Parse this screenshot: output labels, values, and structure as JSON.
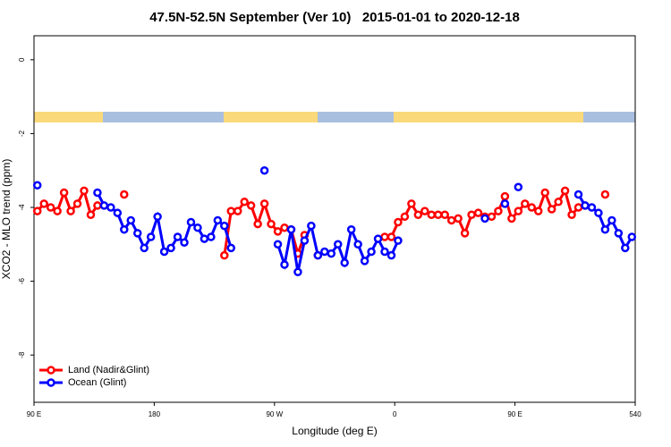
{
  "chart_data": {
    "type": "line",
    "title": "47.5N-52.5N September (Ver 10)   2015-01-01 to 2020-12-18",
    "xlabel": "Longitude (deg E)",
    "ylabel": "XCO2 - MLO trend (ppm)",
    "xlim": [
      90,
      540
    ],
    "ylim": [
      -9.28,
      0.65
    ],
    "xticks": [
      {
        "value": 90,
        "label": "90 E"
      },
      180,
      {
        "value": 270,
        "label": "90 W"
      },
      {
        "value": 360,
        "label": "0"
      },
      {
        "value": 450,
        "label": "90 E"
      },
      540
    ],
    "yticks": [
      -8,
      -6,
      -4,
      -2,
      0
    ],
    "legend": "bottom-left",
    "x": [
      92.5,
      97.5,
      102.5,
      107.5,
      112.5,
      117.5,
      122.5,
      127.5,
      132.5,
      137.5,
      142.5,
      147.5,
      152.5,
      157.5,
      162.5,
      167.5,
      172.5,
      177.5,
      182.5,
      187.5,
      192.5,
      197.5,
      202.5,
      207.5,
      212.5,
      217.5,
      222.5,
      227.5,
      232.5,
      237.5,
      242.5,
      247.5,
      252.5,
      257.5,
      262.5,
      267.5,
      272.5,
      277.5,
      282.5,
      287.5,
      292.5,
      297.5,
      302.5,
      307.5,
      312.5,
      317.5,
      322.5,
      327.5,
      332.5,
      337.5,
      342.5,
      347.5,
      352.5,
      357.5,
      362.5,
      367.5,
      372.5,
      377.5,
      382.5,
      387.5,
      392.5,
      397.5,
      402.5,
      407.5,
      412.5,
      417.5,
      422.5,
      427.5,
      432.5,
      437.5,
      442.5,
      447.5,
      452.5,
      457.5,
      462.5,
      467.5,
      472.5,
      477.5,
      482.5,
      487.5,
      492.5,
      497.5,
      502.5,
      507.5,
      512.5,
      517.5,
      522.5,
      527.5,
      532.5,
      537.5
    ],
    "series": [
      {
        "name": "Land (Nadir&Glint)",
        "color": "#ff0000",
        "values": [
          -4.1,
          -3.9,
          -4.0,
          -4.1,
          -3.6,
          -4.1,
          -3.9,
          -3.55,
          -4.2,
          -3.95,
          null,
          null,
          null,
          -3.65,
          null,
          null,
          null,
          null,
          null,
          null,
          null,
          null,
          null,
          null,
          null,
          null,
          null,
          null,
          -5.3,
          -4.1,
          -4.1,
          -3.85,
          -3.95,
          -4.45,
          -3.9,
          -4.45,
          -4.65,
          -4.55,
          -4.6,
          -5.25,
          -4.75,
          null,
          -5.3,
          null,
          null,
          null,
          null,
          null,
          null,
          null,
          null,
          null,
          -4.8,
          -4.8,
          -4.4,
          -4.25,
          -3.9,
          -4.2,
          -4.1,
          -4.2,
          -4.2,
          -4.2,
          -4.35,
          -4.3,
          -4.7,
          -4.2,
          -4.15,
          -4.25,
          -4.25,
          -4.1,
          -3.7,
          -4.3,
          -4.1,
          -3.9,
          -4.0,
          -4.1,
          -3.6,
          -4.05,
          -3.85,
          -3.55,
          -4.2,
          -4.0,
          -3.95,
          null,
          null,
          -3.65,
          null,
          null,
          null,
          null
        ]
      },
      {
        "name": "Ocean (Glint)",
        "color": "#0000ff",
        "values": [
          -3.4,
          null,
          null,
          null,
          null,
          null,
          null,
          null,
          null,
          -3.6,
          -3.95,
          -4.0,
          -4.15,
          -4.6,
          -4.35,
          -4.7,
          -5.1,
          -4.8,
          -4.25,
          -5.2,
          -5.1,
          -4.8,
          -4.95,
          -4.4,
          -4.55,
          -4.85,
          -4.8,
          -4.35,
          -4.5,
          -5.1,
          null,
          null,
          null,
          null,
          -3.0,
          null,
          -5.0,
          -5.55,
          -4.6,
          -5.75,
          -4.9,
          -4.5,
          -5.3,
          -5.2,
          -5.25,
          -5.0,
          -5.5,
          -4.6,
          -5.0,
          -5.45,
          -5.2,
          -4.85,
          -5.2,
          -5.3,
          -4.9,
          null,
          null,
          null,
          null,
          null,
          null,
          null,
          null,
          null,
          null,
          null,
          null,
          -4.3,
          null,
          null,
          -3.9,
          null,
          -3.45,
          null,
          null,
          null,
          null,
          null,
          null,
          null,
          null,
          -3.65,
          -3.95,
          -4.0,
          -4.15,
          -4.6,
          -4.35,
          -4.7,
          -5.1,
          -4.8
        ]
      }
    ]
  }
}
